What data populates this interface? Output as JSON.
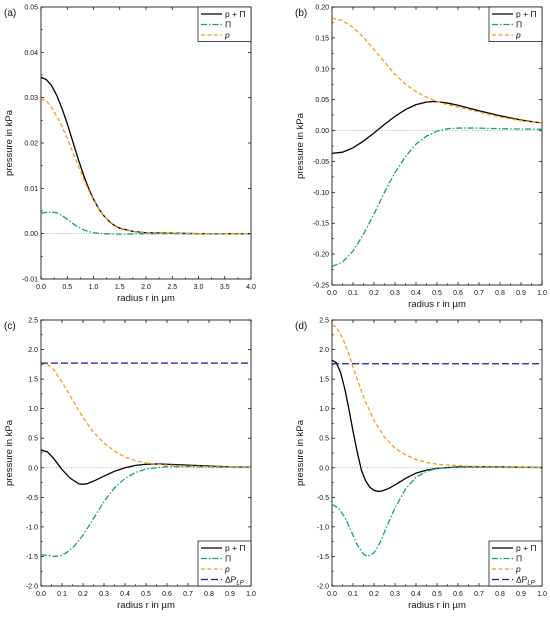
{
  "chart_data": [
    {
      "type": "line",
      "panel_label": "(a)",
      "xlabel": "radius r in µm",
      "ylabel": "pressure in kPa",
      "xlim": [
        0,
        4.0
      ],
      "ylim": [
        -0.01,
        0.05
      ],
      "xticks": [
        0,
        0.5,
        1.0,
        1.5,
        2.0,
        2.5,
        3.0,
        3.5,
        4.0
      ],
      "xtick_labels": [
        "0.0",
        "0.5",
        "1.0",
        "1.5",
        "2.0",
        "2.5",
        "3.0",
        "3.5",
        "4.0"
      ],
      "yticks": [
        -0.01,
        0,
        0.01,
        0.02,
        0.03,
        0.04,
        0.05
      ],
      "ytick_labels": [
        "-0.01",
        "0.00",
        "0.01",
        "0.02",
        "0.03",
        "0.04",
        "0.05"
      ],
      "zero_line": true,
      "legend_position": "top-right",
      "series": [
        {
          "name": "p + Π",
          "color": "#000000",
          "dash": "solid",
          "x": [
            0,
            0.1,
            0.2,
            0.3,
            0.4,
            0.5,
            0.6,
            0.7,
            0.8,
            0.9,
            1.0,
            1.1,
            1.2,
            1.3,
            1.4,
            1.5,
            1.75,
            2.0,
            2.5,
            3.0,
            3.5,
            4.0
          ],
          "y": [
            0.0345,
            0.034,
            0.0327,
            0.0305,
            0.0276,
            0.0243,
            0.0205,
            0.0168,
            0.0133,
            0.0102,
            0.0076,
            0.0055,
            0.0039,
            0.0027,
            0.0018,
            0.0012,
            0.0005,
            0.0002,
            0.0001,
            0.0,
            0.0,
            0.0
          ]
        },
        {
          "name": "Π",
          "color": "#109f8c",
          "dash": "dashdot",
          "x": [
            0,
            0.1,
            0.2,
            0.3,
            0.4,
            0.5,
            0.6,
            0.7,
            0.8,
            0.9,
            1.0,
            1.2,
            1.4,
            1.6,
            2.0,
            2.5,
            3.0,
            4.0
          ],
          "y": [
            0.0045,
            0.0047,
            0.0048,
            0.0046,
            0.004,
            0.0032,
            0.0023,
            0.0015,
            0.0009,
            0.0005,
            0.0002,
            0.0,
            -0.0001,
            -0.0001,
            0.0,
            0.0,
            0.0,
            0.0
          ]
        },
        {
          "name": "p",
          "color": "#f39c1d",
          "dash": "dash",
          "x": [
            0,
            0.1,
            0.2,
            0.3,
            0.4,
            0.5,
            0.6,
            0.7,
            0.8,
            0.9,
            1.0,
            1.1,
            1.2,
            1.3,
            1.4,
            1.5,
            1.75,
            2.0,
            2.5,
            3.0,
            3.5,
            4.0
          ],
          "y": [
            0.0298,
            0.0293,
            0.0279,
            0.0259,
            0.0236,
            0.021,
            0.0182,
            0.0153,
            0.0124,
            0.0098,
            0.0074,
            0.0055,
            0.0039,
            0.0028,
            0.0019,
            0.0013,
            0.0005,
            0.0002,
            0.0001,
            0.0,
            0.0,
            0.0
          ]
        }
      ]
    },
    {
      "type": "line",
      "panel_label": "(b)",
      "xlabel": "radius r in µm",
      "ylabel": "pressure in kPa",
      "xlim": [
        0,
        1.0
      ],
      "ylim": [
        -0.25,
        0.2
      ],
      "xticks": [
        0,
        0.1,
        0.2,
        0.3,
        0.4,
        0.5,
        0.6,
        0.7,
        0.8,
        0.9,
        1.0
      ],
      "xtick_labels": [
        "0.0",
        "0.1",
        "0.2",
        "0.3",
        "0.4",
        "0.5",
        "0.6",
        "0.7",
        "0.8",
        "0.9",
        "1.0"
      ],
      "yticks": [
        -0.25,
        -0.2,
        -0.15,
        -0.1,
        -0.05,
        0,
        0.05,
        0.1,
        0.15,
        0.2
      ],
      "ytick_labels": [
        "-0.25",
        "-0.20",
        "-0.15",
        "-0.10",
        "-0.05",
        "0.00",
        "0.05",
        "0.10",
        "0.15",
        "0.20"
      ],
      "zero_line": true,
      "legend_position": "top-right",
      "series": [
        {
          "name": "p + Π",
          "color": "#000000",
          "dash": "solid",
          "x": [
            0,
            0.05,
            0.1,
            0.15,
            0.2,
            0.25,
            0.3,
            0.35,
            0.4,
            0.45,
            0.48,
            0.5,
            0.55,
            0.6,
            0.7,
            0.8,
            0.9,
            1.0
          ],
          "y": [
            -0.037,
            -0.035,
            -0.028,
            -0.017,
            -0.004,
            0.01,
            0.023,
            0.034,
            0.042,
            0.046,
            0.047,
            0.0468,
            0.0445,
            0.041,
            0.032,
            0.024,
            0.017,
            0.012
          ]
        },
        {
          "name": "Π",
          "color": "#109f8c",
          "dash": "dashdot",
          "x": [
            0,
            0.05,
            0.1,
            0.15,
            0.2,
            0.25,
            0.3,
            0.35,
            0.4,
            0.45,
            0.5,
            0.55,
            0.6,
            0.65,
            0.7,
            0.8,
            0.9,
            1.0
          ],
          "y": [
            -0.22,
            -0.213,
            -0.195,
            -0.168,
            -0.135,
            -0.1,
            -0.068,
            -0.042,
            -0.022,
            -0.009,
            -0.001,
            0.003,
            0.004,
            0.004,
            0.004,
            0.003,
            0.0025,
            0.002
          ]
        },
        {
          "name": "p",
          "color": "#f39c1d",
          "dash": "dash",
          "x": [
            0,
            0.05,
            0.1,
            0.15,
            0.2,
            0.25,
            0.3,
            0.35,
            0.4,
            0.45,
            0.5,
            0.55,
            0.6,
            0.7,
            0.8,
            0.9,
            1.0
          ],
          "y": [
            0.182,
            0.178,
            0.167,
            0.151,
            0.131,
            0.111,
            0.091,
            0.075,
            0.063,
            0.054,
            0.047,
            0.042,
            0.038,
            0.03,
            0.022,
            0.016,
            0.012
          ]
        }
      ]
    },
    {
      "type": "line",
      "panel_label": "(c)",
      "xlabel": "radius r in µm",
      "ylabel": "pressure in kPa",
      "xlim": [
        0,
        1.0
      ],
      "ylim": [
        -2.0,
        2.5
      ],
      "xticks": [
        0,
        0.1,
        0.2,
        0.3,
        0.4,
        0.5,
        0.6,
        0.7,
        0.8,
        0.9,
        1.0
      ],
      "xtick_labels": [
        "0.0",
        "0.1",
        "0.2",
        "0.3",
        "0.4",
        "0.5",
        "0.6",
        "0.7",
        "0.8",
        "0.9",
        "1.0"
      ],
      "yticks": [
        -2.0,
        -1.5,
        -1.0,
        -0.5,
        0,
        0.5,
        1.0,
        1.5,
        2.0,
        2.5
      ],
      "ytick_labels": [
        "-2.0",
        "-1.5",
        "-1.0",
        "-0.5",
        "0.0",
        "0.5",
        "1.0",
        "1.5",
        "2.0",
        "2.5"
      ],
      "zero_line": true,
      "legend_position": "bottom-right",
      "series": [
        {
          "name": "p + Π",
          "color": "#000000",
          "dash": "solid",
          "x": [
            0,
            0.03,
            0.06,
            0.1,
            0.14,
            0.18,
            0.2,
            0.22,
            0.26,
            0.3,
            0.35,
            0.4,
            0.45,
            0.5,
            0.55,
            0.6,
            0.7,
            0.8,
            0.9,
            1.0
          ],
          "y": [
            0.3,
            0.27,
            0.16,
            -0.03,
            -0.18,
            -0.27,
            -0.28,
            -0.27,
            -0.21,
            -0.14,
            -0.06,
            0.0,
            0.04,
            0.06,
            0.065,
            0.06,
            0.045,
            0.03,
            0.015,
            0.01
          ]
        },
        {
          "name": "Π",
          "color": "#109f8c",
          "dash": "dashdot",
          "x": [
            0,
            0.03,
            0.06,
            0.09,
            0.12,
            0.16,
            0.2,
            0.25,
            0.3,
            0.35,
            0.4,
            0.45,
            0.5,
            0.6,
            0.7,
            0.8,
            0.9,
            1.0
          ],
          "y": [
            -1.47,
            -1.48,
            -1.5,
            -1.49,
            -1.44,
            -1.32,
            -1.14,
            -0.86,
            -0.57,
            -0.34,
            -0.18,
            -0.08,
            -0.02,
            0.02,
            0.02,
            0.015,
            0.01,
            0.005
          ]
        },
        {
          "name": "p",
          "color": "#f39c1d",
          "dash": "dash",
          "x": [
            0,
            0.03,
            0.06,
            0.1,
            0.15,
            0.2,
            0.25,
            0.3,
            0.35,
            0.4,
            0.45,
            0.5,
            0.55,
            0.6,
            0.7,
            0.8,
            0.9,
            1.0
          ],
          "y": [
            1.77,
            1.75,
            1.66,
            1.45,
            1.15,
            0.85,
            0.6,
            0.42,
            0.28,
            0.18,
            0.12,
            0.08,
            0.06,
            0.045,
            0.03,
            0.02,
            0.01,
            0.005
          ]
        },
        {
          "name": "ΔP",
          "name_subscript": "LP",
          "color": "#1c1c9c",
          "dash": "longdash",
          "x": [
            0,
            1.0
          ],
          "y": [
            1.77,
            1.77
          ]
        }
      ]
    },
    {
      "type": "line",
      "panel_label": "(d)",
      "xlabel": "radius r in µm",
      "ylabel": "pressure in kPa",
      "xlim": [
        0,
        1.0
      ],
      "ylim": [
        -2.0,
        2.5
      ],
      "xticks": [
        0,
        0.1,
        0.2,
        0.3,
        0.4,
        0.5,
        0.6,
        0.7,
        0.8,
        0.9,
        1.0
      ],
      "xtick_labels": [
        "0.0",
        "0.1",
        "0.2",
        "0.3",
        "0.4",
        "0.5",
        "0.6",
        "0.7",
        "0.8",
        "0.9",
        "1.0"
      ],
      "yticks": [
        -2.0,
        -1.5,
        -1.0,
        -0.5,
        0,
        0.5,
        1.0,
        1.5,
        2.0,
        2.5
      ],
      "ytick_labels": [
        "-2.0",
        "-1.5",
        "-1.0",
        "-0.5",
        "0.0",
        "0.5",
        "1.0",
        "1.5",
        "2.0",
        "2.5"
      ],
      "zero_line": true,
      "legend_position": "bottom-right",
      "series": [
        {
          "name": "p + Π",
          "color": "#000000",
          "dash": "solid",
          "x": [
            0,
            0.02,
            0.04,
            0.06,
            0.08,
            0.1,
            0.12,
            0.14,
            0.16,
            0.18,
            0.2,
            0.22,
            0.24,
            0.27,
            0.3,
            0.35,
            0.4,
            0.45,
            0.5,
            0.6,
            0.7,
            0.8,
            0.9,
            1.0
          ],
          "y": [
            1.82,
            1.78,
            1.62,
            1.35,
            1.0,
            0.62,
            0.27,
            -0.04,
            -0.22,
            -0.33,
            -0.38,
            -0.4,
            -0.39,
            -0.35,
            -0.29,
            -0.18,
            -0.09,
            -0.04,
            -0.01,
            0.015,
            0.02,
            0.015,
            0.01,
            0.005
          ]
        },
        {
          "name": "Π",
          "color": "#109f8c",
          "dash": "dashdot",
          "x": [
            0,
            0.03,
            0.06,
            0.09,
            0.12,
            0.15,
            0.17,
            0.2,
            0.23,
            0.26,
            0.3,
            0.35,
            0.4,
            0.45,
            0.5,
            0.6,
            0.7,
            0.8,
            0.9,
            1.0
          ],
          "y": [
            -0.62,
            -0.68,
            -0.83,
            -1.06,
            -1.3,
            -1.46,
            -1.5,
            -1.44,
            -1.26,
            -1.0,
            -0.68,
            -0.36,
            -0.16,
            -0.06,
            -0.01,
            0.01,
            0.01,
            0.01,
            0.005,
            0.005
          ]
        },
        {
          "name": "p",
          "color": "#f39c1d",
          "dash": "dash",
          "x": [
            0,
            0.02,
            0.05,
            0.08,
            0.1,
            0.15,
            0.2,
            0.25,
            0.3,
            0.35,
            0.4,
            0.45,
            0.5,
            0.6,
            0.7,
            0.8,
            0.9,
            1.0
          ],
          "y": [
            2.42,
            2.38,
            2.2,
            1.93,
            1.7,
            1.2,
            0.8,
            0.52,
            0.33,
            0.22,
            0.14,
            0.09,
            0.06,
            0.035,
            0.02,
            0.015,
            0.01,
            0.005
          ]
        },
        {
          "name": "ΔP",
          "name_subscript": "LP",
          "color": "#1c1c9c",
          "dash": "longdash",
          "x": [
            0,
            1.0
          ],
          "y": [
            1.76,
            1.76
          ]
        }
      ]
    }
  ]
}
